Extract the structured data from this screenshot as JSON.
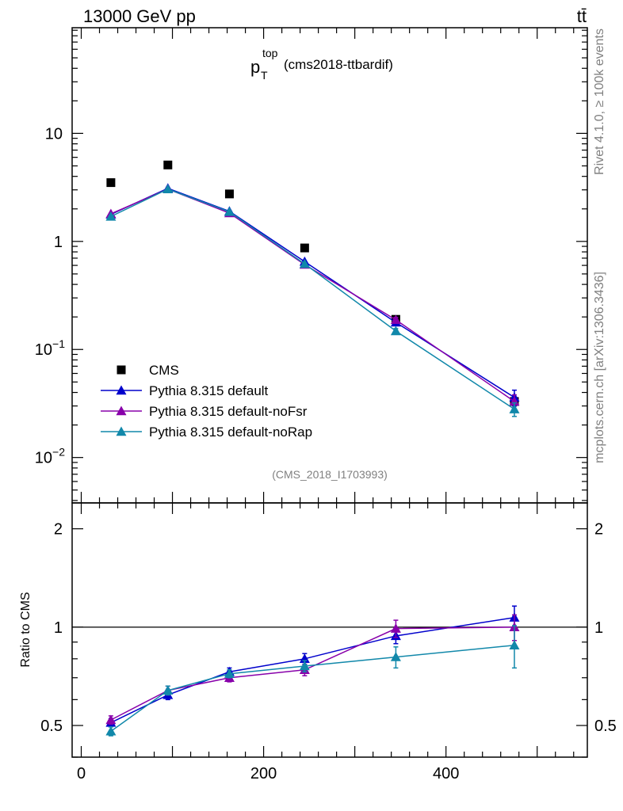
{
  "header": {
    "energy_label": "13000 GeV pp",
    "process_label": "tt̄"
  },
  "side_labels": {
    "rivet": "Rivet 4.1.0, ≥ 100k events",
    "mcplots": "mcplots.cern.ch [arXiv:1306.3436]"
  },
  "chart_data": [
    {
      "type": "scatter",
      "scale": "log",
      "title_main": "p",
      "title_sub": "T",
      "title_sup": "top",
      "title_suffix": "(cms2018-ttbardif)",
      "watermark": "(CMS_2018_I1703993)",
      "xlim": [
        -10,
        555
      ],
      "ylim": [
        0.0038,
        95
      ],
      "y_ticks": [
        {
          "value": 10,
          "base": "10",
          "exp": ""
        },
        {
          "value": 1,
          "base": "1",
          "exp": ""
        },
        {
          "value": 0.1,
          "base": "10",
          "exp": "−1"
        },
        {
          "value": 0.01,
          "base": "10",
          "exp": "−2"
        }
      ],
      "legend_position": "bottom-left",
      "x": [
        32.5,
        95,
        162.5,
        245,
        345,
        475
      ],
      "series": [
        {
          "name": "CMS",
          "marker": "square",
          "color": "#000000",
          "values": [
            3.5,
            5.1,
            2.75,
            0.87,
            0.19,
            0.033
          ],
          "err": [
            0,
            0,
            0,
            0,
            0,
            0.003
          ]
        },
        {
          "name": "Pythia 8.315 default",
          "marker": "triangle",
          "color": "#0000cc",
          "values": [
            1.78,
            3.1,
            1.9,
            0.65,
            0.178,
            0.036
          ],
          "err": [
            0,
            0,
            0,
            0,
            0.01,
            0.006
          ]
        },
        {
          "name": "Pythia 8.315 default-noFsr",
          "marker": "triangle",
          "color": "#8800aa",
          "values": [
            1.8,
            3.05,
            1.83,
            0.61,
            0.188,
            0.033
          ],
          "err": [
            0,
            0,
            0,
            0,
            0.01,
            0.005
          ]
        },
        {
          "name": "Pythia 8.315 default-noRap",
          "marker": "triangle",
          "color": "#1188aa",
          "values": [
            1.7,
            3.05,
            1.88,
            0.62,
            0.148,
            0.028
          ],
          "err": [
            0,
            0,
            0,
            0,
            0.008,
            0.004
          ]
        }
      ]
    },
    {
      "type": "line",
      "scale": "log",
      "ylabel": "Ratio to CMS",
      "xlim": [
        -10,
        555
      ],
      "ylim": [
        0.4,
        2.4
      ],
      "x_ticks": [
        0,
        200,
        400
      ],
      "y_ticks": [
        {
          "value": 0.5,
          "label": "0.5"
        },
        {
          "value": 1,
          "label": "1"
        },
        {
          "value": 2,
          "label": "2"
        }
      ],
      "reference_line": 1,
      "x": [
        32.5,
        95,
        162.5,
        245,
        345,
        475
      ],
      "series": [
        {
          "name": "Pythia 8.315 default",
          "color": "#0000cc",
          "values": [
            0.51,
            0.62,
            0.73,
            0.8,
            0.94,
            1.07
          ],
          "err": [
            0.015,
            0.02,
            0.02,
            0.03,
            0.05,
            0.09
          ]
        },
        {
          "name": "Pythia 8.315 default-noFsr",
          "color": "#8800aa",
          "values": [
            0.52,
            0.64,
            0.7,
            0.74,
            0.99,
            1.0
          ],
          "err": [
            0.015,
            0.02,
            0.02,
            0.03,
            0.06,
            0.09
          ]
        },
        {
          "name": "Pythia 8.315 default-noRap",
          "color": "#1188aa",
          "values": [
            0.48,
            0.64,
            0.72,
            0.76,
            0.81,
            0.88
          ],
          "err": [
            0.015,
            0.02,
            0.02,
            0.03,
            0.06,
            0.13
          ]
        }
      ]
    }
  ]
}
